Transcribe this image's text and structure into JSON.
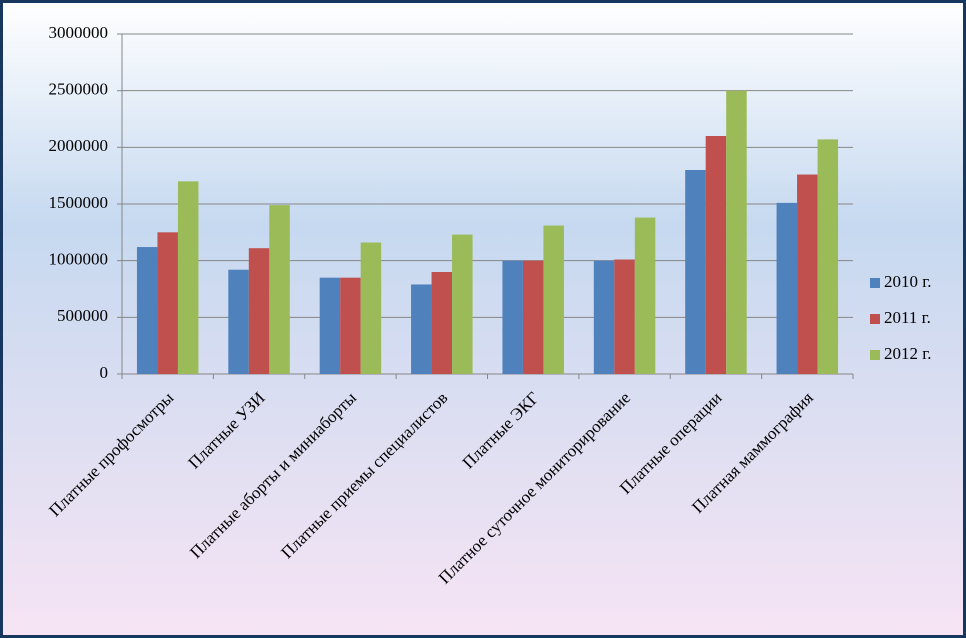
{
  "chart_data": {
    "type": "bar",
    "categories": [
      "Платные профосмотры",
      "Платные УЗИ",
      "Платные аборты и миниаборты",
      "Платные приемы специалистов",
      "Платные ЭКГ",
      "Платное суточное мониторирование",
      "Платные операции",
      "Платная маммография"
    ],
    "series": [
      {
        "name": "2010 г.",
        "color": "#4f81bd",
        "values": [
          1120000,
          920000,
          850000,
          790000,
          1000000,
          1000000,
          1800000,
          1510000
        ]
      },
      {
        "name": "2011 г.",
        "color": "#c0504d",
        "values": [
          1250000,
          1110000,
          850000,
          900000,
          1000000,
          1010000,
          2100000,
          1760000
        ]
      },
      {
        "name": "2012 г.",
        "color": "#9bbb59",
        "values": [
          1700000,
          1490000,
          1160000,
          1230000,
          1310000,
          1380000,
          2500000,
          2070000
        ]
      }
    ],
    "ylim": [
      0,
      3000000
    ],
    "yticks": [
      0,
      500000,
      1000000,
      1500000,
      2000000,
      2500000,
      3000000
    ],
    "grid": true,
    "legend": "right"
  }
}
